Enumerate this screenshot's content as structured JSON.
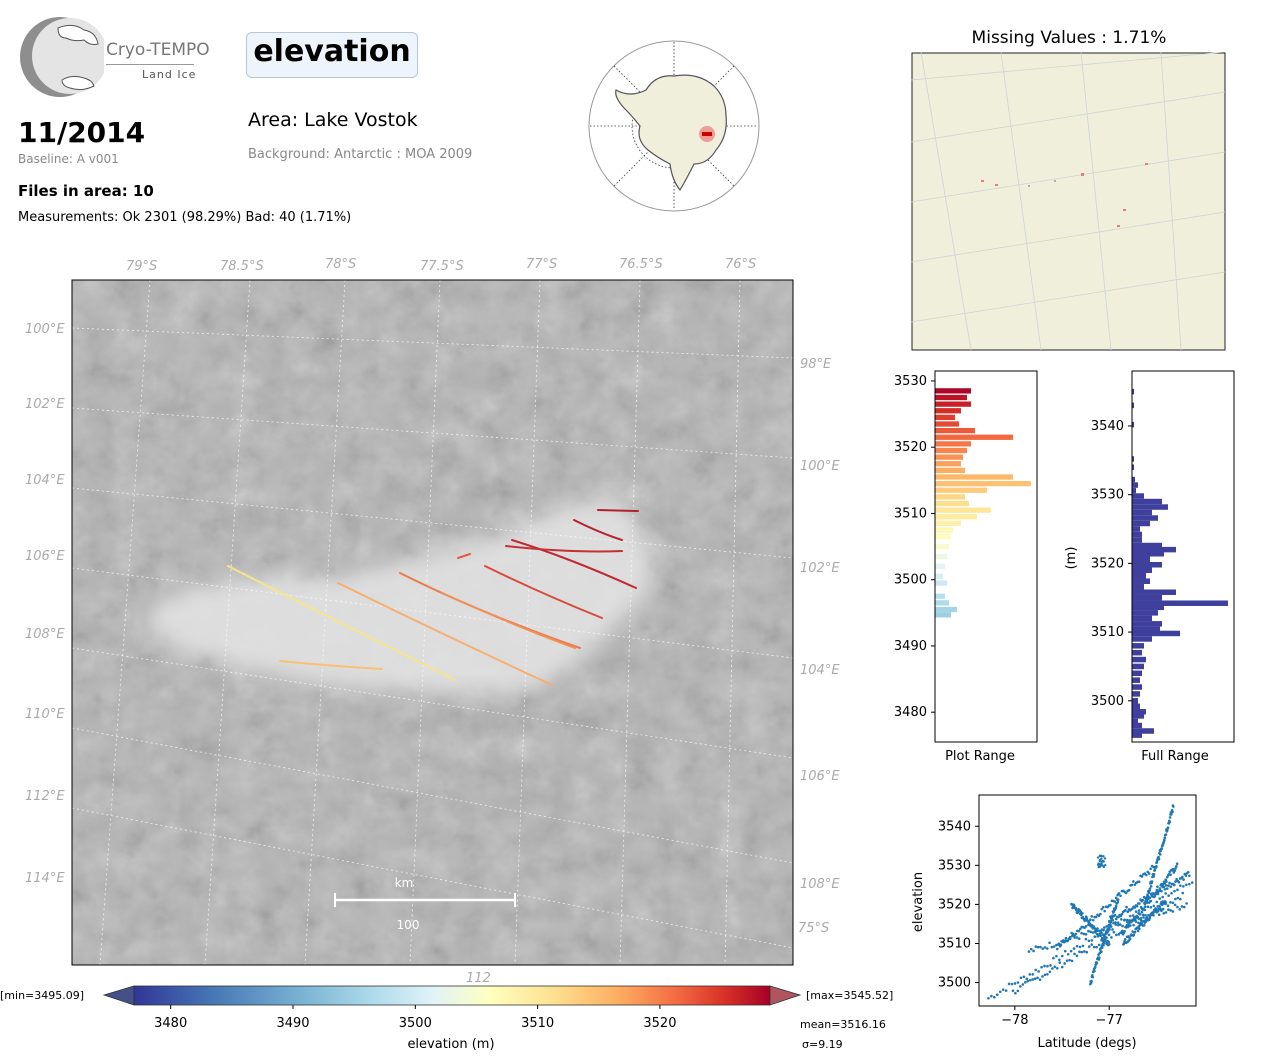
{
  "header": {
    "logo_text": "Cryo-TEMPO",
    "logo_subtext": "Land Ice",
    "variable": "elevation",
    "date": "11/2014",
    "baseline": "Baseline: A v001",
    "files_in_area": "Files in area: 10",
    "measurements": "Measurements: Ok 2301 (98.29%) Bad: 40 (1.71%)",
    "area": "Area: Lake Vostok",
    "background": "Background: Antarctic : MOA 2009"
  },
  "map": {
    "lat_labels": [
      "79°S",
      "78.5°S",
      "78°S",
      "77.5°S",
      "77°S",
      "76.5°S",
      "76°S"
    ],
    "lon_labels_left": [
      "100°E",
      "102°E",
      "104°E",
      "106°E",
      "108°E",
      "110°E",
      "112°E",
      "114°E"
    ],
    "lon_labels_right": [
      "98°E",
      "100°E",
      "102°E",
      "104°E",
      "106°E",
      "108°E"
    ],
    "extra_labels": [
      "75°S",
      "112"
    ],
    "scalebar_unit": "km",
    "scalebar_value": "100"
  },
  "colorbar": {
    "ticks": [
      "3480",
      "3490",
      "3500",
      "3510",
      "3520"
    ],
    "label": "elevation (m)",
    "min_label": "[min=3495.09]",
    "max_label": "[max=3545.52]",
    "mean_label": "mean=3516.16",
    "sigma_label": "σ=9.19",
    "range": [
      3477,
      3529
    ]
  },
  "missing_values": {
    "title": "Missing Values : 1.71%"
  },
  "chart_data": [
    {
      "type": "bar",
      "orientation": "horizontal",
      "title": "",
      "xlabel": "Plot Range",
      "ylabel": "",
      "ylim": [
        3475.5,
        3531.5
      ],
      "yticks": [
        3480,
        3490,
        3500,
        3510,
        3520,
        3530
      ],
      "bins": [
        {
          "y": 3494.7,
          "count": 0.16
        },
        {
          "y": 3495.5,
          "count": 0.22
        },
        {
          "y": 3496.5,
          "count": 0.14
        },
        {
          "y": 3497.5,
          "count": 0.1
        },
        {
          "y": 3499.5,
          "count": 0.12
        },
        {
          "y": 3500.5,
          "count": 0.08
        },
        {
          "y": 3502,
          "count": 0.1
        },
        {
          "y": 3503.5,
          "count": 0.12
        },
        {
          "y": 3505,
          "count": 0.14
        },
        {
          "y": 3506.5,
          "count": 0.16
        },
        {
          "y": 3507.5,
          "count": 0.18
        },
        {
          "y": 3508.5,
          "count": 0.26
        },
        {
          "y": 3509.5,
          "count": 0.42
        },
        {
          "y": 3510.5,
          "count": 0.56
        },
        {
          "y": 3511.5,
          "count": 0.34
        },
        {
          "y": 3512.5,
          "count": 0.3
        },
        {
          "y": 3513.5,
          "count": 0.52
        },
        {
          "y": 3514.5,
          "count": 0.96
        },
        {
          "y": 3515.5,
          "count": 0.78
        },
        {
          "y": 3516.5,
          "count": 0.3
        },
        {
          "y": 3517.5,
          "count": 0.26
        },
        {
          "y": 3518.5,
          "count": 0.28
        },
        {
          "y": 3519.5,
          "count": 0.32
        },
        {
          "y": 3520.5,
          "count": 0.36
        },
        {
          "y": 3521.5,
          "count": 0.78
        },
        {
          "y": 3522.5,
          "count": 0.4
        },
        {
          "y": 3523.5,
          "count": 0.24
        },
        {
          "y": 3524.5,
          "count": 0.2
        },
        {
          "y": 3525.5,
          "count": 0.26
        },
        {
          "y": 3526.5,
          "count": 0.36
        },
        {
          "y": 3527.5,
          "count": 0.32
        },
        {
          "y": 3528.5,
          "count": 0.36
        }
      ]
    },
    {
      "type": "bar",
      "orientation": "horizontal",
      "title": "",
      "xlabel": "Full Range",
      "ylabel": "(m)",
      "ylim": [
        3494,
        3548
      ],
      "yticks": [
        3500,
        3510,
        3520,
        3530,
        3540
      ],
      "bins": [
        {
          "y": 3495,
          "count": 0.1
        },
        {
          "y": 3495.6,
          "count": 0.22
        },
        {
          "y": 3496.4,
          "count": 0.1
        },
        {
          "y": 3497,
          "count": 0.06
        },
        {
          "y": 3497.8,
          "count": 0.12
        },
        {
          "y": 3498.4,
          "count": 0.14
        },
        {
          "y": 3499.2,
          "count": 0.08
        },
        {
          "y": 3500,
          "count": 0.06
        },
        {
          "y": 3501,
          "count": 0.08
        },
        {
          "y": 3502,
          "count": 0.1
        },
        {
          "y": 3503,
          "count": 0.08
        },
        {
          "y": 3504,
          "count": 0.1
        },
        {
          "y": 3505,
          "count": 0.12
        },
        {
          "y": 3506,
          "count": 0.14
        },
        {
          "y": 3507,
          "count": 0.1
        },
        {
          "y": 3508,
          "count": 0.12
        },
        {
          "y": 3509,
          "count": 0.2
        },
        {
          "y": 3509.8,
          "count": 0.48
        },
        {
          "y": 3510.4,
          "count": 0.28
        },
        {
          "y": 3511.2,
          "count": 0.3
        },
        {
          "y": 3512,
          "count": 0.2
        },
        {
          "y": 3512.8,
          "count": 0.26
        },
        {
          "y": 3513.6,
          "count": 0.32
        },
        {
          "y": 3514.2,
          "count": 0.96
        },
        {
          "y": 3515,
          "count": 0.3
        },
        {
          "y": 3515.8,
          "count": 0.44
        },
        {
          "y": 3516.6,
          "count": 0.12
        },
        {
          "y": 3517.4,
          "count": 0.18
        },
        {
          "y": 3518.2,
          "count": 0.14
        },
        {
          "y": 3519,
          "count": 0.2
        },
        {
          "y": 3519.8,
          "count": 0.3
        },
        {
          "y": 3520.6,
          "count": 0.18
        },
        {
          "y": 3521.4,
          "count": 0.32
        },
        {
          "y": 3522,
          "count": 0.44
        },
        {
          "y": 3522.6,
          "count": 0.3
        },
        {
          "y": 3523.4,
          "count": 0.1
        },
        {
          "y": 3524.2,
          "count": 0.1
        },
        {
          "y": 3525,
          "count": 0.08
        },
        {
          "y": 3525.8,
          "count": 0.18
        },
        {
          "y": 3526.6,
          "count": 0.26
        },
        {
          "y": 3527.4,
          "count": 0.2
        },
        {
          "y": 3528.2,
          "count": 0.36
        },
        {
          "y": 3529,
          "count": 0.3
        },
        {
          "y": 3529.8,
          "count": 0.12
        },
        {
          "y": 3530.6,
          "count": 0.04
        },
        {
          "y": 3531.4,
          "count": 0.06
        },
        {
          "y": 3532.2,
          "count": 0.03
        },
        {
          "y": 3534,
          "count": 0.02
        },
        {
          "y": 3535.2,
          "count": 0.02
        },
        {
          "y": 3540.2,
          "count": 0.02
        },
        {
          "y": 3543,
          "count": 0.02
        },
        {
          "y": 3545,
          "count": 0.02
        }
      ]
    },
    {
      "type": "scatter",
      "title": "",
      "xlabel": "Latitude (degs)",
      "ylabel": "elevation",
      "xlim": [
        -78.38,
        -76.08
      ],
      "ylim": [
        3494,
        3548
      ],
      "xticks": [
        -78,
        -77
      ],
      "ytick_values": [
        3500,
        3510,
        3520,
        3530,
        3540
      ],
      "tracks": [
        {
          "x0": -78.28,
          "y0": 3496.0,
          "x1": -76.12,
          "y1": 3526.0
        },
        {
          "x0": -78.02,
          "y0": 3497.5,
          "x1": -76.22,
          "y1": 3522.5
        },
        {
          "x0": -77.85,
          "y0": 3508.0,
          "x1": -76.18,
          "y1": 3520.0
        },
        {
          "x0": -77.55,
          "y0": 3509.0,
          "x1": -76.5,
          "y1": 3530.0
        },
        {
          "x0": -77.4,
          "y0": 3520.0,
          "x1": -77.0,
          "y1": 3510.0
        },
        {
          "x0": -77.0,
          "y0": 3516.0,
          "x1": -76.15,
          "y1": 3528.0
        },
        {
          "x0": -76.88,
          "y0": 3512.0,
          "x1": -76.28,
          "y1": 3530.0
        },
        {
          "x0": -76.62,
          "y0": 3520.0,
          "x1": -76.32,
          "y1": 3545.0
        },
        {
          "x0": -77.2,
          "y0": 3500.0,
          "x1": -76.9,
          "y1": 3522.0
        },
        {
          "x0": -76.85,
          "y0": 3510.0,
          "x1": -76.4,
          "y1": 3521.0
        }
      ],
      "cluster": {
        "x0": -77.12,
        "x1": -77.04,
        "y0": 3529.5,
        "y1": 3532.5
      }
    }
  ]
}
